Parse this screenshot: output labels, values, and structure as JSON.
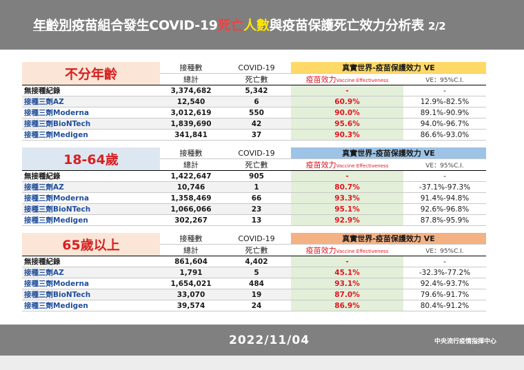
{
  "title": {
    "pre": "年齡別",
    "main": "疫苗組合發生COVID-19",
    "red": "死亡",
    "yel": "人數",
    "post": "與疫苗保護死亡效力分析表",
    "page": "2/2"
  },
  "headers": {
    "vaccinated": "接種數",
    "total": "總計",
    "covid": "COVID-19",
    "death": "死亡數",
    "ve_group": "真實世界-疫苗保護效力 VE",
    "ve_zh": "疫苗效力",
    "ve_en": "Vaccine Effectiveness",
    "ci": "VE：95%C.I."
  },
  "sections": [
    {
      "label": "不分年齡",
      "color": "#fbe5d6",
      "rows": [
        {
          "name": "無接種紀錄",
          "count": "3,374,682",
          "deaths": "5,342",
          "ve": "-",
          "ci": "-"
        },
        {
          "name": "接種三劑AZ",
          "count": "12,540",
          "deaths": "6",
          "ve": "60.9%",
          "ci": "12.9%-82.5%"
        },
        {
          "name": "接種三劑Moderna",
          "count": "3,012,619",
          "deaths": "550",
          "ve": "90.0%",
          "ci": "89.1%-90.9%"
        },
        {
          "name": "接種三劑BioNTech",
          "count": "1,839,690",
          "deaths": "42",
          "ve": "95.6%",
          "ci": "94.0%-96.7%"
        },
        {
          "name": "接種三劑Medigen",
          "count": "341,841",
          "deaths": "37",
          "ve": "90.3%",
          "ci": "86.6%-93.0%"
        }
      ]
    },
    {
      "label": "18-64歲",
      "color": "#dde7f1",
      "rows": [
        {
          "name": "無接種紀錄",
          "count": "1,422,647",
          "deaths": "905",
          "ve": "-",
          "ci": "-"
        },
        {
          "name": "接種三劑AZ",
          "count": "10,746",
          "deaths": "1",
          "ve": "80.7%",
          "ci": "-37.1%-97.3%"
        },
        {
          "name": "接種三劑Moderna",
          "count": "1,358,469",
          "deaths": "66",
          "ve": "93.3%",
          "ci": "91.4%-94.8%"
        },
        {
          "name": "接種三劑BioNTech",
          "count": "1,066,066",
          "deaths": "23",
          "ve": "95.1%",
          "ci": "92.6%-96.8%"
        },
        {
          "name": "接種三劑Medigen",
          "count": "302,267",
          "deaths": "13",
          "ve": "92.9%",
          "ci": "87.8%-95.9%"
        }
      ]
    },
    {
      "label": "65歲以上",
      "color": "#fbe5d6",
      "rows": [
        {
          "name": "無接種紀錄",
          "count": "861,604",
          "deaths": "4,402",
          "ve": "-",
          "ci": "-"
        },
        {
          "name": "接種三劑AZ",
          "count": "1,791",
          "deaths": "5",
          "ve": "45.1%",
          "ci": "-32.3%-77.2%"
        },
        {
          "name": "接種三劑Moderna",
          "count": "1,654,021",
          "deaths": "484",
          "ve": "93.1%",
          "ci": "92.4%-93.7%"
        },
        {
          "name": "接種三劑BioNTech",
          "count": "33,070",
          "deaths": "19",
          "ve": "87.0%",
          "ci": "79.6%-91.7%"
        },
        {
          "name": "接種三劑Medigen",
          "count": "39,574",
          "deaths": "24",
          "ve": "86.9%",
          "ci": "80.4%-91.2%"
        }
      ]
    }
  ],
  "footer": {
    "date": "2022/11/04",
    "org": "中央流行疫情指揮中心"
  },
  "colors": {
    "header_bg": "#7f7f7f",
    "red_accent": "#ff3b3b",
    "yellow_accent": "#ffe600",
    "ve_cell_bg": "#e3efd9",
    "ve_text": "#e0141e",
    "ve_header_gold": "#ffd966",
    "ve_header_blue": "#9dc3e6",
    "ve_header_peach": "#f4b183"
  }
}
